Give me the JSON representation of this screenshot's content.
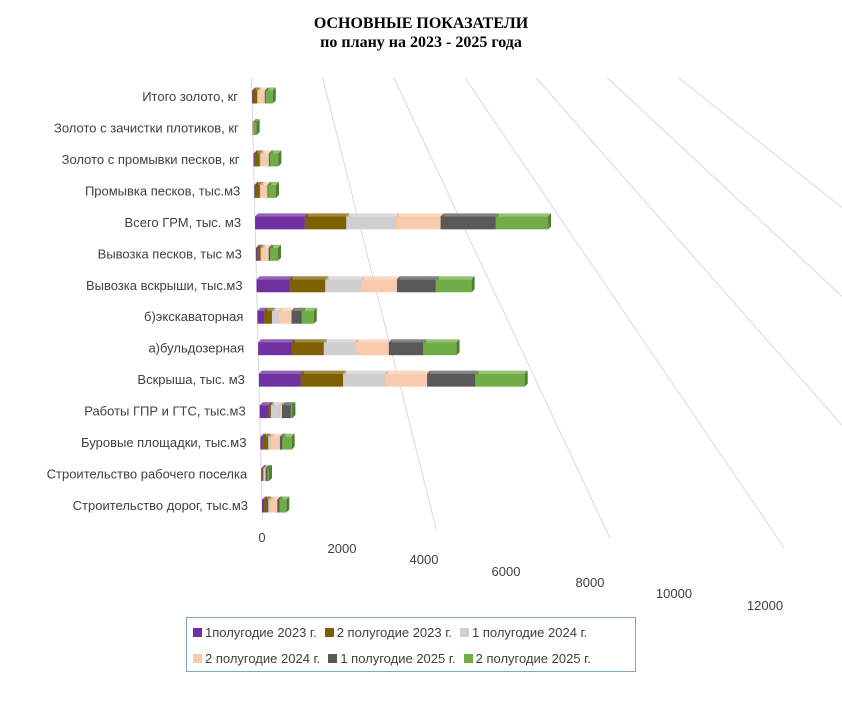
{
  "chart_data": {
    "type": "bar",
    "orientation": "horizontal",
    "stacked": true,
    "style": "3d",
    "title": "ОСНОВНЫЕ ПОКАЗАТЕЛИ",
    "subtitle": "по плану на 2023 - 2025 года",
    "categories": [
      "Итого золото, кг",
      "Золото  с зачистки плотиков, кг",
      "Золото  с промывки песков, кг",
      "Промывка песков, тыс.м3",
      "Всего ГРМ, тыс. м3",
      "Вывозка песков, тыс м3",
      "Вывозка вскрыши, тыс.м3",
      "б)экскаваторная",
      "а)бульдозерная",
      "Вскрыша, тыс. м3",
      "Работы ГПР и ГТС, тыс.м3",
      "Буровые площадки, тыс.м3",
      "Строительство  рабочего поселка",
      "Строительство дорог, тыс.м3"
    ],
    "series": [
      {
        "name": "1полугодие 2023 г.",
        "color": "#7030a0",
        "values": [
          20,
          3,
          20,
          15,
          950,
          25,
          550,
          110,
          500,
          590,
          120,
          30,
          15,
          25
        ]
      },
      {
        "name": "2 полугодие 2023 г.",
        "color": "#7f6000",
        "values": [
          120,
          5,
          120,
          100,
          790,
          60,
          600,
          120,
          480,
          600,
          30,
          70,
          10,
          50
        ]
      },
      {
        "name": "1 полугодие 2024 г.",
        "color": "#d0cece",
        "values": [
          20,
          3,
          20,
          15,
          950,
          25,
          600,
          110,
          470,
          590,
          120,
          30,
          15,
          25
        ]
      },
      {
        "name": "2 полугодие 2024 г.",
        "color": "#f8cbad",
        "values": [
          180,
          10,
          180,
          140,
          850,
          120,
          600,
          200,
          500,
          600,
          30,
          120,
          15,
          80
        ]
      },
      {
        "name": "1 полугодие 2025 г.",
        "color": "#595959",
        "values": [
          20,
          3,
          20,
          15,
          1050,
          25,
          650,
          160,
          510,
          680,
          120,
          30,
          20,
          25
        ]
      },
      {
        "name": "2 полугодие 2025 г.",
        "color": "#70ad47",
        "values": [
          190,
          70,
          190,
          160,
          1000,
          140,
          600,
          190,
          500,
          700,
          20,
          120,
          20,
          80
        ]
      }
    ],
    "x_ticks": [
      "0",
      "2000",
      "4000",
      "6000",
      "8000",
      "10000",
      "12000"
    ],
    "xlim": [
      0,
      12000
    ],
    "grid": true,
    "legend_position": "bottom"
  }
}
